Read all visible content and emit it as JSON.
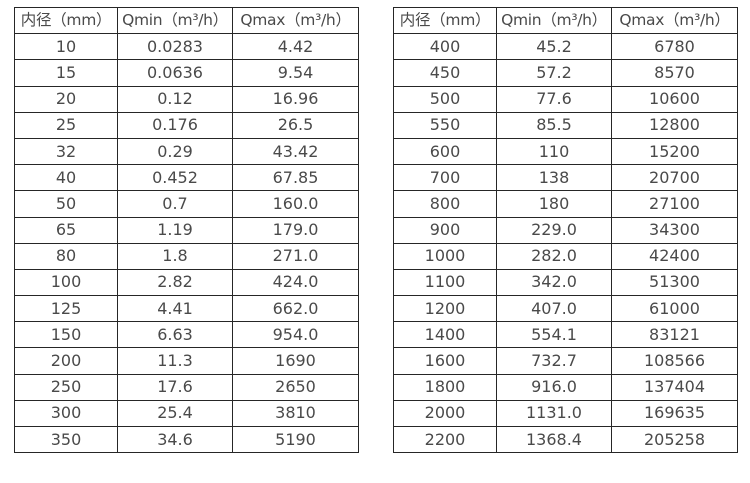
{
  "page": {
    "background_color": "#ffffff",
    "border_color": "#262626",
    "text_color": "#4a4a4a"
  },
  "tables": [
    {
      "name": "flow-table-small-diameters",
      "headers": [
        "内径（mm）",
        "Qmin（m³/h）",
        "Qmax（m³/h）"
      ],
      "rows": [
        [
          "10",
          "0.0283",
          "4.42"
        ],
        [
          "15",
          "0.0636",
          "9.54"
        ],
        [
          "20",
          "0.12",
          "16.96"
        ],
        [
          "25",
          "0.176",
          "26.5"
        ],
        [
          "32",
          "0.29",
          "43.42"
        ],
        [
          "40",
          "0.452",
          "67.85"
        ],
        [
          "50",
          "0.7",
          "160.0"
        ],
        [
          "65",
          "1.19",
          "179.0"
        ],
        [
          "80",
          "1.8",
          "271.0"
        ],
        [
          "100",
          "2.82",
          "424.0"
        ],
        [
          "125",
          "4.41",
          "662.0"
        ],
        [
          "150",
          "6.63",
          "954.0"
        ],
        [
          "200",
          "11.3",
          "1690"
        ],
        [
          "250",
          "17.6",
          "2650"
        ],
        [
          "300",
          "25.4",
          "3810"
        ],
        [
          "350",
          "34.6",
          "5190"
        ]
      ]
    },
    {
      "name": "flow-table-large-diameters",
      "headers": [
        "内径（mm）",
        "Qmin（m³/h）",
        "Qmax（m³/h）"
      ],
      "rows": [
        [
          "400",
          "45.2",
          "6780"
        ],
        [
          "450",
          "57.2",
          "8570"
        ],
        [
          "500",
          "77.6",
          "10600"
        ],
        [
          "550",
          "85.5",
          "12800"
        ],
        [
          "600",
          "110",
          "15200"
        ],
        [
          "700",
          "138",
          "20700"
        ],
        [
          "800",
          "180",
          "27100"
        ],
        [
          "900",
          "229.0",
          "34300"
        ],
        [
          "1000",
          "282.0",
          "42400"
        ],
        [
          "1100",
          "342.0",
          "51300"
        ],
        [
          "1200",
          "407.0",
          "61000"
        ],
        [
          "1400",
          "554.1",
          "83121"
        ],
        [
          "1600",
          "732.7",
          "108566"
        ],
        [
          "1800",
          "916.0",
          "137404"
        ],
        [
          "2000",
          "1131.0",
          "169635"
        ],
        [
          "2200",
          "1368.4",
          "205258"
        ]
      ]
    }
  ]
}
